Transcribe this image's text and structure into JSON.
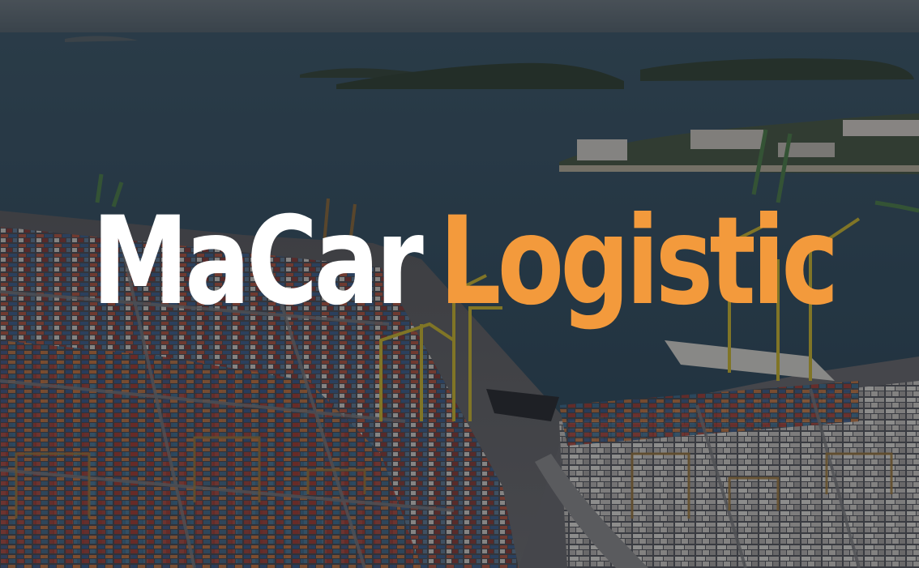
{
  "brand": {
    "name_part1": "MaCar",
    "name_part2": "Logistic",
    "color_primary": "#ffffff",
    "color_accent": "#f39a3c"
  },
  "background": {
    "subject": "aerial-container-port-photo"
  }
}
